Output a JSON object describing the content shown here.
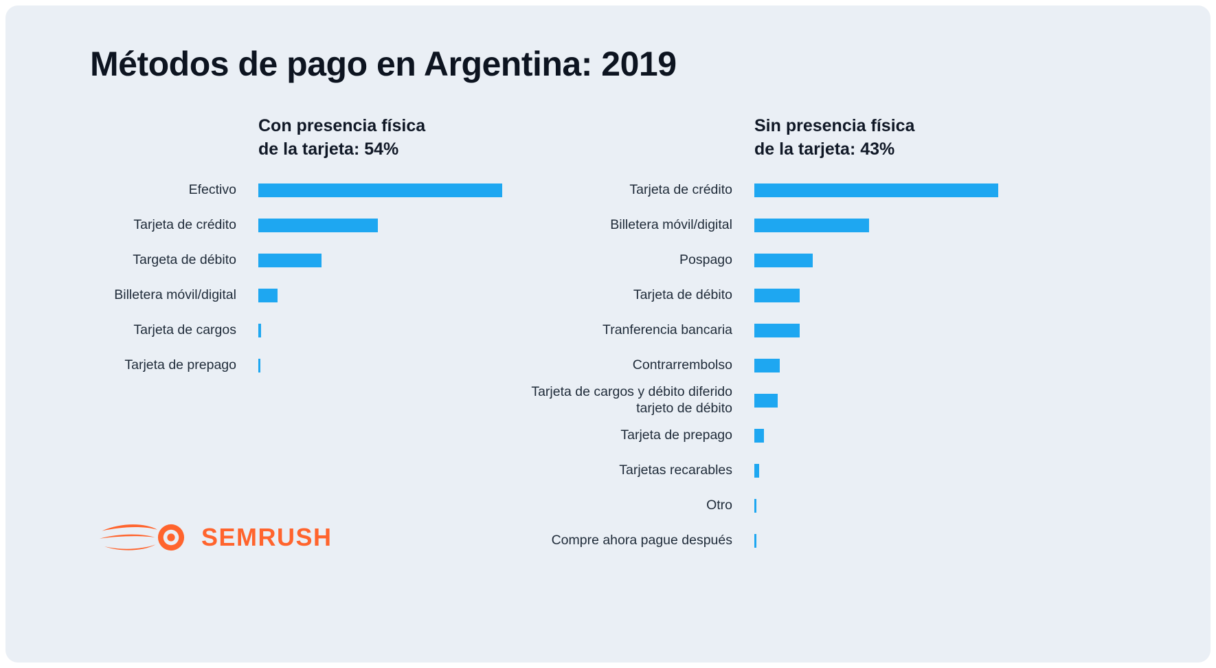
{
  "page": {
    "title": "Métodos de pago en Argentina: 2019"
  },
  "theme": {
    "panel_background": "#EAEFF5",
    "bar_color": "#1EA7F1",
    "text_color": "#1E2A38",
    "logo_color": "#FF642D"
  },
  "logo": {
    "wordmark": "SEMRUSH"
  },
  "chart_data": [
    {
      "type": "bar",
      "orientation": "horizontal",
      "title": "Con presencia física\nde la tarjeta: 54%",
      "group_share_percent": 54,
      "categories": [
        "Efectivo",
        "Tarjeta de crédito",
        "Targeta de débito",
        "Billetera móvil/digital",
        "Tarjeta de cargos",
        "Tarjeta de prepago"
      ],
      "values": [
        100,
        49,
        26,
        8,
        1.2,
        0.8
      ],
      "value_note": "relative bar lengths, longest bar = 100; no numeric axis shown in image",
      "xlim": [
        0,
        100
      ],
      "xlabel": "",
      "ylabel": "",
      "grid": false,
      "legend": false
    },
    {
      "type": "bar",
      "orientation": "horizontal",
      "title": "Sin presencia física\nde la tarjeta: 43%",
      "group_share_percent": 43,
      "categories": [
        "Tarjeta de crédito",
        "Billetera móvil/digital",
        "Pospago",
        "Tarjeta de débito",
        "Tranferencia bancaria",
        "Contrarrembolso",
        "Tarjeta de cargos y débito diferido\ntarjeto de débito",
        "Tarjeta de prepago",
        "Tarjetas recarables",
        "Otro",
        "Compre ahora pague después"
      ],
      "values": [
        100,
        47,
        24,
        18.5,
        18.5,
        10.5,
        9.5,
        4,
        2,
        0.9,
        0.8
      ],
      "value_note": "relative bar lengths, longest bar = 100; no numeric axis shown in image",
      "xlim": [
        0,
        100
      ],
      "xlabel": "",
      "ylabel": "",
      "grid": false,
      "legend": false
    }
  ]
}
